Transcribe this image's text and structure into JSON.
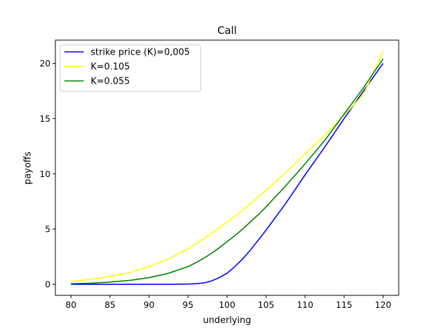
{
  "chart_data": {
    "type": "line",
    "title": "Call",
    "xlabel": "underlying",
    "ylabel": "payoffs",
    "xlim": [
      78,
      122
    ],
    "ylim": [
      -1,
      22.1
    ],
    "xticks": [
      80,
      85,
      90,
      95,
      100,
      105,
      110,
      115,
      120
    ],
    "yticks": [
      0,
      5,
      10,
      15,
      20
    ],
    "grid": false,
    "legend_placement": "upper-left",
    "x": [
      80,
      82.5,
      85,
      87.5,
      90,
      92.5,
      95,
      96,
      97,
      98,
      99,
      100,
      101,
      102,
      103,
      104,
      105,
      107.5,
      110,
      112.5,
      115,
      117.5,
      120
    ],
    "series": [
      {
        "name": "strike price (K)=0,005",
        "color": "#0000ff",
        "values": [
          0,
          0,
          0,
          0,
          0,
          0,
          0.02,
          0.05,
          0.12,
          0.3,
          0.6,
          1.0,
          1.6,
          2.3,
          3.1,
          4.0,
          4.9,
          7.3,
          9.9,
          12.4,
          15.0,
          17.5,
          20.0
        ]
      },
      {
        "name": "K=0.105",
        "color": "#ffff00",
        "values": [
          0.25,
          0.45,
          0.7,
          1.05,
          1.6,
          2.3,
          3.2,
          3.65,
          4.1,
          4.6,
          5.1,
          5.6,
          6.15,
          6.7,
          7.3,
          7.9,
          8.5,
          10.1,
          11.8,
          13.5,
          15.3,
          17.2,
          21.1
        ]
      },
      {
        "name": "K=0.055",
        "color": "#008000",
        "values": [
          0.05,
          0.1,
          0.2,
          0.35,
          0.6,
          1.0,
          1.6,
          1.95,
          2.35,
          2.8,
          3.3,
          3.85,
          4.4,
          5.0,
          5.65,
          6.3,
          7.0,
          8.9,
          10.9,
          13.0,
          15.4,
          17.8,
          20.4
        ]
      }
    ]
  }
}
